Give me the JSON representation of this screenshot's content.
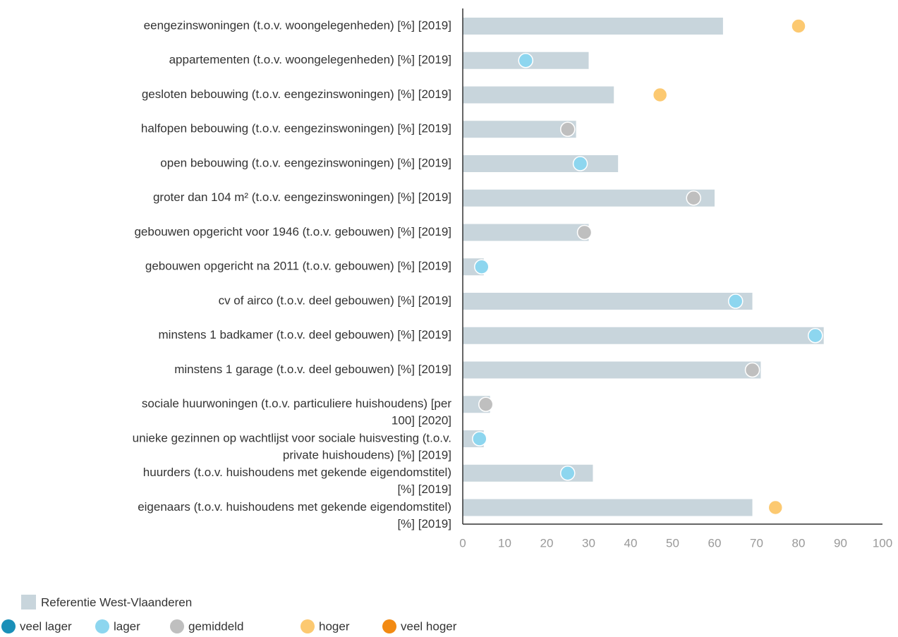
{
  "chart_data": {
    "type": "bar-dot",
    "orientation": "horizontal",
    "categories": [
      "eengezinswoningen (t.o.v. woongelegenheden) [%] [2019]",
      "appartementen (t.o.v. woongelegenheden) [%] [2019]",
      "gesloten bebouwing (t.o.v. eengezinswoningen) [%] [2019]",
      "halfopen bebouwing (t.o.v. eengezinswoningen) [%] [2019]",
      "open bebouwing (t.o.v. eengezinswoningen) [%] [2019]",
      "groter dan 104 m² (t.o.v. eengezinswoningen) [%] [2019]",
      "gebouwen opgericht voor 1946 (t.o.v. gebouwen) [%] [2019]",
      "gebouwen opgericht na 2011 (t.o.v. gebouwen) [%] [2019]",
      "cv of airco (t.o.v. deel gebouwen) [%] [2019]",
      "minstens 1 badkamer (t.o.v. deel gebouwen) [%] [2019]",
      "minstens 1 garage (t.o.v. deel gebouwen) [%] [2019]",
      [
        "sociale huurwoningen (t.o.v. particuliere huishoudens) [per",
        "100] [2020]"
      ],
      [
        "unieke gezinnen op wachtlijst voor sociale huisvesting (t.o.v.",
        "private huishoudens) [%] [2019]"
      ],
      [
        "huurders (t.o.v. huishoudens met gekende eigendomstitel)",
        "[%] [2019]"
      ],
      [
        "eigenaars (t.o.v. huishoudens met gekende eigendomstitel)",
        "[%] [2019]"
      ]
    ],
    "series": [
      {
        "name": "Referentie West-Vlaanderen",
        "color": "#c8d5dc",
        "values": [
          62,
          30,
          36,
          27,
          37,
          60,
          30,
          5,
          69,
          86,
          71,
          6.5,
          5,
          31,
          69
        ]
      },
      {
        "values": [
          80,
          15,
          47,
          25,
          28,
          55,
          29,
          4.5,
          65,
          84,
          69,
          5.5,
          4,
          25,
          74.5
        ],
        "point_level": [
          3,
          1,
          3,
          2,
          1,
          2,
          2,
          1,
          1,
          1,
          2,
          2,
          1,
          1,
          3
        ]
      }
    ],
    "levels": [
      {
        "name": "veel lager",
        "color": "#1a8fb8"
      },
      {
        "name": "lager",
        "color": "#8dd6ef"
      },
      {
        "name": "gemiddeld",
        "color": "#bfbfbf"
      },
      {
        "name": "hoger",
        "color": "#fcc971"
      },
      {
        "name": "veel hoger",
        "color": "#f28a12"
      }
    ],
    "xlim": [
      0,
      100
    ],
    "xticks": [
      0,
      10,
      20,
      30,
      40,
      50,
      60,
      70,
      80,
      90,
      100
    ]
  }
}
